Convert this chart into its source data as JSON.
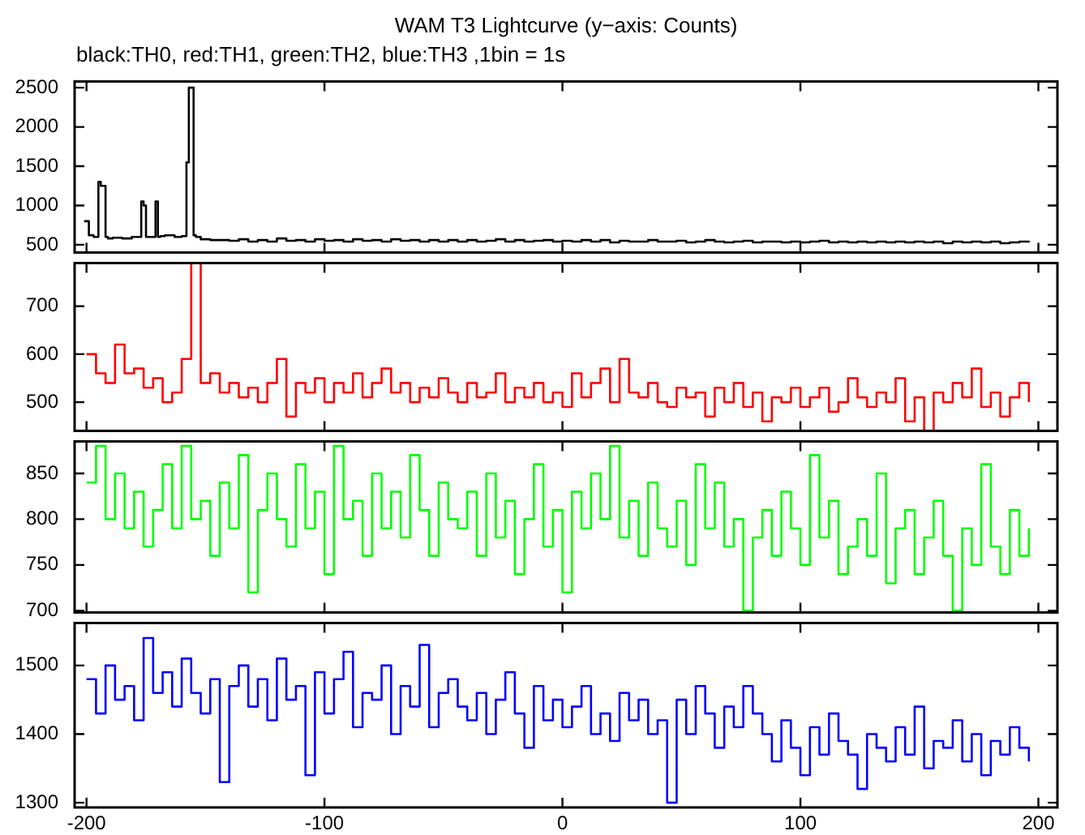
{
  "chart_data": [
    {
      "type": "step",
      "title": "WAM T3 Lightcurve (y−axis: Counts)",
      "subtitle": "black:TH0, red:TH1, green:TH2, blue:TH3 ,1bin = 1s",
      "xlim": [
        -205,
        208
      ],
      "xticks": [
        -200,
        -100,
        0,
        100,
        200
      ],
      "ylim": [
        400,
        2580
      ],
      "yticks": [
        500,
        1000,
        1500,
        2000,
        2500
      ],
      "tick_labels": "y",
      "series": [
        {
          "color": "#000000",
          "x": [
            -201,
            -199,
            -197,
            -195,
            -194,
            -193,
            -192,
            -191,
            -189,
            -185,
            -181,
            -178,
            -177,
            -176,
            -175,
            -173,
            -171,
            -170,
            -169,
            -167,
            -163,
            -160,
            -158,
            -157,
            -156,
            -155,
            -154,
            -152,
            -148,
            -144,
            -140,
            -136,
            -132,
            -128,
            -124,
            -120,
            -116,
            -112,
            -108,
            -104,
            -100,
            -96,
            -92,
            -88,
            -84,
            -80,
            -76,
            -72,
            -68,
            -64,
            -60,
            -56,
            -52,
            -48,
            -44,
            -40,
            -36,
            -32,
            -28,
            -24,
            -20,
            -16,
            -12,
            -8,
            -4,
            0,
            4,
            8,
            12,
            16,
            20,
            24,
            28,
            32,
            36,
            40,
            44,
            48,
            52,
            56,
            60,
            64,
            68,
            72,
            76,
            80,
            84,
            88,
            92,
            96,
            100,
            104,
            108,
            112,
            116,
            120,
            124,
            128,
            132,
            136,
            140,
            144,
            148,
            152,
            156,
            160,
            164,
            168,
            172,
            176,
            180,
            184,
            188,
            192,
            196
          ],
          "values": [
            800,
            620,
            600,
            1300,
            1250,
            1250,
            600,
            580,
            590,
            580,
            600,
            600,
            1050,
            1000,
            600,
            600,
            1050,
            600,
            610,
            620,
            600,
            610,
            1550,
            2500,
            2500,
            620,
            600,
            570,
            560,
            560,
            550,
            570,
            540,
            560,
            540,
            580,
            550,
            560,
            540,
            570,
            550,
            560,
            540,
            570,
            550,
            560,
            540,
            570,
            550,
            560,
            540,
            560,
            540,
            560,
            540,
            560,
            540,
            550,
            570,
            540,
            560,
            540,
            550,
            560,
            540,
            550,
            540,
            560,
            540,
            560,
            530,
            550,
            540,
            540,
            560,
            540,
            540,
            550,
            530,
            540,
            560,
            540,
            530,
            540,
            550,
            530,
            540,
            540,
            530,
            540,
            530,
            540,
            550,
            530,
            540,
            530,
            540,
            530,
            540,
            530,
            540,
            530,
            540,
            530,
            540,
            520,
            540,
            530,
            540,
            530,
            540,
            520,
            530,
            540,
            530
          ]
        }
      ]
    },
    {
      "type": "step",
      "xlim": [
        -205,
        208
      ],
      "xticks": [
        -200,
        -100,
        0,
        100,
        200
      ],
      "ylim": [
        440,
        790
      ],
      "yticks": [
        500,
        600,
        700
      ],
      "tick_labels": "y",
      "x": [
        -200,
        -196,
        -192,
        -188,
        -184,
        -180,
        -176,
        -172,
        -168,
        -164,
        -160,
        -156,
        -152,
        -148,
        -144,
        -140,
        -136,
        -132,
        -128,
        -124,
        -120,
        -116,
        -112,
        -108,
        -104,
        -100,
        -96,
        -92,
        -88,
        -84,
        -80,
        -76,
        -72,
        -68,
        -64,
        -60,
        -56,
        -52,
        -48,
        -44,
        -40,
        -36,
        -32,
        -28,
        -24,
        -20,
        -16,
        -12,
        -8,
        -4,
        0,
        4,
        8,
        12,
        16,
        20,
        24,
        28,
        32,
        36,
        40,
        44,
        48,
        52,
        56,
        60,
        64,
        68,
        72,
        76,
        80,
        84,
        88,
        92,
        96,
        100,
        104,
        108,
        112,
        116,
        120,
        124,
        128,
        132,
        136,
        140,
        144,
        148,
        152,
        156,
        160,
        164,
        168,
        172,
        176,
        180,
        184,
        188,
        192,
        196
      ],
      "series": [
        {
          "color": "#ff0000",
          "values": [
            600,
            560,
            540,
            620,
            560,
            570,
            530,
            550,
            500,
            520,
            590,
            790,
            540,
            560,
            520,
            540,
            510,
            530,
            500,
            540,
            590,
            470,
            540,
            520,
            550,
            500,
            540,
            520,
            560,
            510,
            540,
            570,
            520,
            540,
            500,
            530,
            510,
            550,
            520,
            500,
            540,
            510,
            520,
            560,
            500,
            530,
            510,
            540,
            500,
            520,
            490,
            560,
            510,
            540,
            570,
            500,
            590,
            520,
            510,
            540,
            500,
            490,
            530,
            510,
            520,
            470,
            530,
            500,
            540,
            490,
            520,
            460,
            510,
            500,
            530,
            490,
            510,
            530,
            480,
            500,
            550,
            510,
            490,
            520,
            500,
            550,
            460,
            510,
            440,
            520,
            500,
            540,
            510,
            570,
            490,
            520,
            470,
            510,
            540,
            500
          ]
        }
      ]
    },
    {
      "type": "step",
      "xlim": [
        -205,
        208
      ],
      "xticks": [
        -200,
        -100,
        0,
        100,
        200
      ],
      "ylim": [
        698,
        885
      ],
      "yticks": [
        700,
        750,
        800,
        850
      ],
      "tick_labels": "y",
      "x": [
        -200,
        -196,
        -192,
        -188,
        -184,
        -180,
        -176,
        -172,
        -168,
        -164,
        -160,
        -156,
        -152,
        -148,
        -144,
        -140,
        -136,
        -132,
        -128,
        -124,
        -120,
        -116,
        -112,
        -108,
        -104,
        -100,
        -96,
        -92,
        -88,
        -84,
        -80,
        -76,
        -72,
        -68,
        -64,
        -60,
        -56,
        -52,
        -48,
        -44,
        -40,
        -36,
        -32,
        -28,
        -24,
        -20,
        -16,
        -12,
        -8,
        -4,
        0,
        4,
        8,
        12,
        16,
        20,
        24,
        28,
        32,
        36,
        40,
        44,
        48,
        52,
        56,
        60,
        64,
        68,
        72,
        76,
        80,
        84,
        88,
        92,
        96,
        100,
        104,
        108,
        112,
        116,
        120,
        124,
        128,
        132,
        136,
        140,
        144,
        148,
        152,
        156,
        160,
        164,
        168,
        172,
        176,
        180,
        184,
        188,
        192,
        196
      ],
      "series": [
        {
          "color": "#00ff00",
          "values": [
            840,
            880,
            800,
            850,
            790,
            830,
            770,
            810,
            860,
            790,
            880,
            800,
            820,
            760,
            840,
            790,
            870,
            720,
            810,
            850,
            800,
            770,
            860,
            790,
            830,
            740,
            880,
            800,
            820,
            760,
            850,
            790,
            830,
            780,
            870,
            810,
            760,
            840,
            800,
            790,
            830,
            760,
            850,
            780,
            820,
            740,
            800,
            860,
            770,
            810,
            720,
            830,
            790,
            850,
            800,
            880,
            780,
            820,
            760,
            840,
            790,
            770,
            820,
            750,
            860,
            790,
            840,
            770,
            800,
            700,
            780,
            810,
            760,
            830,
            790,
            750,
            870,
            780,
            820,
            740,
            770,
            800,
            760,
            850,
            730,
            790,
            810,
            740,
            780,
            820,
            760,
            700,
            790,
            750,
            860,
            770,
            740,
            810,
            760,
            790
          ]
        }
      ]
    },
    {
      "type": "step",
      "xlim": [
        -205,
        208
      ],
      "xticks": [
        -200,
        -100,
        0,
        100,
        200
      ],
      "ylim": [
        1293,
        1562
      ],
      "yticks": [
        1300,
        1400,
        1500
      ],
      "x": [
        -200,
        -196,
        -192,
        -188,
        -184,
        -180,
        -176,
        -172,
        -168,
        -164,
        -160,
        -156,
        -152,
        -148,
        -144,
        -140,
        -136,
        -132,
        -128,
        -124,
        -120,
        -116,
        -112,
        -108,
        -104,
        -100,
        -96,
        -92,
        -88,
        -84,
        -80,
        -76,
        -72,
        -68,
        -64,
        -60,
        -56,
        -52,
        -48,
        -44,
        -40,
        -36,
        -32,
        -28,
        -24,
        -20,
        -16,
        -12,
        -8,
        -4,
        0,
        4,
        8,
        12,
        16,
        20,
        24,
        28,
        32,
        36,
        40,
        44,
        48,
        52,
        56,
        60,
        64,
        68,
        72,
        76,
        80,
        84,
        88,
        92,
        96,
        100,
        104,
        108,
        112,
        116,
        120,
        124,
        128,
        132,
        136,
        140,
        144,
        148,
        152,
        156,
        160,
        164,
        168,
        172,
        176,
        180,
        184,
        188,
        192,
        196
      ],
      "series": [
        {
          "color": "#0000ff",
          "values": [
            1480,
            1430,
            1500,
            1450,
            1470,
            1420,
            1540,
            1460,
            1490,
            1440,
            1510,
            1460,
            1430,
            1480,
            1330,
            1470,
            1500,
            1440,
            1480,
            1420,
            1510,
            1450,
            1470,
            1340,
            1490,
            1430,
            1480,
            1520,
            1410,
            1460,
            1450,
            1500,
            1400,
            1470,
            1440,
            1530,
            1410,
            1460,
            1480,
            1440,
            1420,
            1460,
            1400,
            1450,
            1490,
            1430,
            1380,
            1470,
            1420,
            1450,
            1410,
            1440,
            1470,
            1400,
            1430,
            1390,
            1460,
            1420,
            1450,
            1400,
            1420,
            1300,
            1450,
            1400,
            1470,
            1430,
            1380,
            1440,
            1410,
            1470,
            1430,
            1400,
            1360,
            1420,
            1380,
            1340,
            1410,
            1370,
            1430,
            1390,
            1370,
            1320,
            1400,
            1380,
            1360,
            1410,
            1370,
            1440,
            1350,
            1390,
            1380,
            1420,
            1360,
            1400,
            1340,
            1390,
            1370,
            1410,
            1380,
            1360
          ]
        }
      ]
    }
  ]
}
